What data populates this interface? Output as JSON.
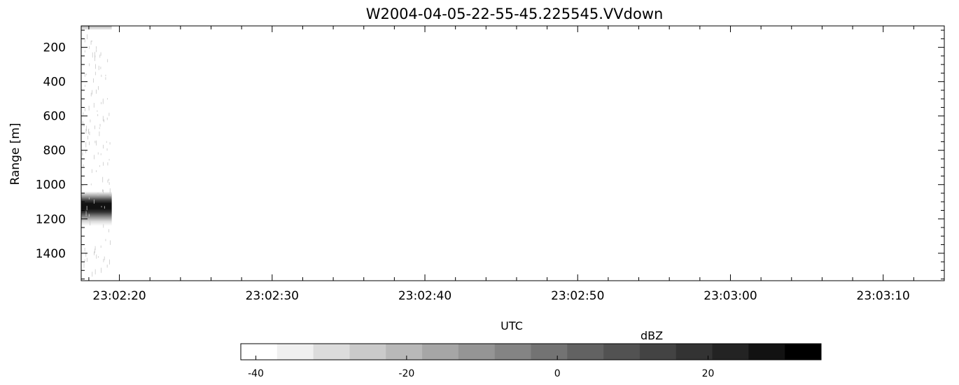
{
  "chart_data": {
    "type": "heatmap",
    "title": "W2004-04-05-22-55-45.225545.VVdown",
    "xlabel": "UTC",
    "ylabel": "Range [m]",
    "x_ticks": [
      "23:02:20",
      "23:02:30",
      "23:02:40",
      "23:02:50",
      "23:03:00",
      "23:03:10"
    ],
    "x_range": [
      "23:02:17.5",
      "23:03:14"
    ],
    "y_ticks": [
      200,
      400,
      600,
      800,
      1000,
      1200,
      1400
    ],
    "y_range": [
      75,
      1560
    ],
    "y_inverted": true,
    "data_time_span": [
      "23:02:17.5",
      "23:02:19.5"
    ],
    "reflectivity_profile": [
      {
        "range": 75,
        "dbz": -22
      },
      {
        "range": 90,
        "dbz": -28
      },
      {
        "range": 100,
        "dbz": -40
      },
      {
        "range": 1040,
        "dbz": -40
      },
      {
        "range": 1070,
        "dbz": -12
      },
      {
        "range": 1090,
        "dbz": 12
      },
      {
        "range": 1110,
        "dbz": 30
      },
      {
        "range": 1140,
        "dbz": 30
      },
      {
        "range": 1160,
        "dbz": 18
      },
      {
        "range": 1185,
        "dbz": -6
      },
      {
        "range": 1215,
        "dbz": -30
      },
      {
        "range": 1240,
        "dbz": -40
      },
      {
        "range": 1560,
        "dbz": -40
      }
    ],
    "colorbar": {
      "label": "dBZ",
      "ticks": [
        -40,
        -20,
        0,
        20
      ],
      "range": [
        -42,
        35
      ],
      "levels": 16,
      "colors": [
        "#ffffff",
        "#f0f0f0",
        "#dcdcdc",
        "#cacaca",
        "#b8b8b8",
        "#a6a6a6",
        "#959595",
        "#848484",
        "#737373",
        "#626262",
        "#525252",
        "#434343",
        "#333333",
        "#232323",
        "#121212",
        "#000000"
      ]
    },
    "grid": false
  }
}
